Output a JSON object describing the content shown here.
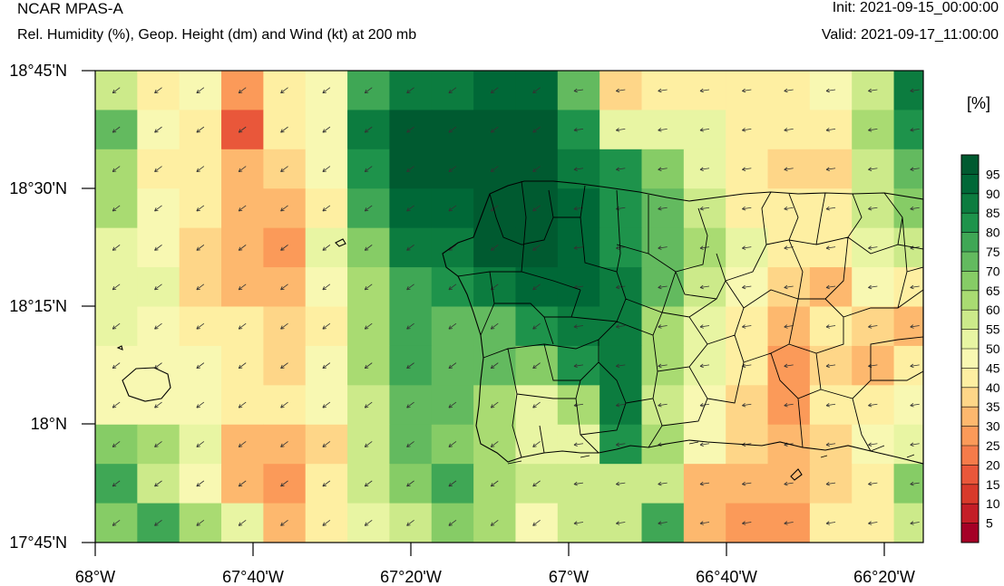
{
  "header": {
    "title": "NCAR MPAS-A",
    "subtitle": "Rel. Humidity (%), Geop. Height (dm) and Wind (kt) at 200 mb",
    "init": "Init: 2021-09-15_00:00:00",
    "valid": "Valid: 2021-09-17_11:00:00"
  },
  "colorbar": {
    "unit": "[%]",
    "labels": [
      "5",
      "10",
      "15",
      "20",
      "25",
      "30",
      "35",
      "40",
      "45",
      "50",
      "55",
      "60",
      "65",
      "70",
      "75",
      "80",
      "85",
      "90",
      "95"
    ],
    "colors": [
      "#a50026",
      "#c41e27",
      "#d83a2b",
      "#e9573a",
      "#f57b4a",
      "#fb9a59",
      "#fdb86e",
      "#fed688",
      "#feefa2",
      "#f8f8b2",
      "#e8f5a3",
      "#ccea8a",
      "#a9db72",
      "#86cc66",
      "#63ba5f",
      "#3fa755",
      "#1e934b",
      "#0c7c3f",
      "#006837",
      "#005a30"
    ]
  },
  "axes": {
    "y_ticks": [
      "18°45'N",
      "18°30'N",
      "18°15'N",
      "18°N",
      "17°45'N"
    ],
    "x_ticks": [
      "68°W",
      "67°40'W",
      "67°20'W",
      "67°W",
      "66°40'W",
      "66°20'W"
    ]
  },
  "chart_data": {
    "type": "heatmap",
    "variable": "Rel. Humidity (%)",
    "grid_rows": [
      [
        55,
        40,
        45,
        25,
        40,
        45,
        75,
        85,
        85,
        90,
        90,
        70,
        35,
        40,
        40,
        40,
        40,
        45,
        55,
        85
      ],
      [
        70,
        45,
        40,
        15,
        40,
        45,
        85,
        95,
        95,
        95,
        95,
        80,
        50,
        50,
        50,
        40,
        40,
        40,
        60,
        80
      ],
      [
        60,
        40,
        40,
        30,
        35,
        45,
        80,
        95,
        95,
        95,
        95,
        85,
        80,
        65,
        50,
        40,
        35,
        35,
        55,
        70
      ],
      [
        60,
        45,
        40,
        30,
        30,
        40,
        75,
        90,
        90,
        95,
        95,
        90,
        80,
        70,
        55,
        40,
        40,
        40,
        55,
        65
      ],
      [
        50,
        45,
        35,
        30,
        25,
        50,
        65,
        85,
        85,
        95,
        95,
        90,
        80,
        70,
        60,
        50,
        40,
        40,
        50,
        55
      ],
      [
        50,
        50,
        35,
        30,
        30,
        45,
        60,
        75,
        80,
        85,
        90,
        90,
        85,
        70,
        55,
        45,
        35,
        30,
        45,
        40
      ],
      [
        50,
        45,
        40,
        40,
        35,
        40,
        60,
        75,
        70,
        70,
        80,
        85,
        85,
        60,
        50,
        40,
        30,
        40,
        35,
        30
      ],
      [
        45,
        45,
        45,
        40,
        35,
        45,
        60,
        75,
        70,
        70,
        65,
        80,
        85,
        60,
        50,
        40,
        25,
        35,
        30,
        40
      ],
      [
        45,
        45,
        45,
        40,
        40,
        45,
        55,
        70,
        70,
        60,
        50,
        60,
        85,
        55,
        45,
        35,
        25,
        40,
        40,
        45
      ],
      [
        65,
        60,
        50,
        30,
        30,
        35,
        55,
        70,
        65,
        60,
        50,
        50,
        80,
        60,
        45,
        35,
        30,
        35,
        45,
        50
      ],
      [
        75,
        55,
        45,
        30,
        25,
        40,
        55,
        65,
        75,
        60,
        55,
        55,
        55,
        55,
        30,
        30,
        30,
        35,
        40,
        65
      ],
      [
        65,
        75,
        60,
        50,
        30,
        40,
        50,
        55,
        65,
        60,
        45,
        55,
        55,
        75,
        30,
        25,
        25,
        40,
        40,
        55
      ]
    ]
  }
}
